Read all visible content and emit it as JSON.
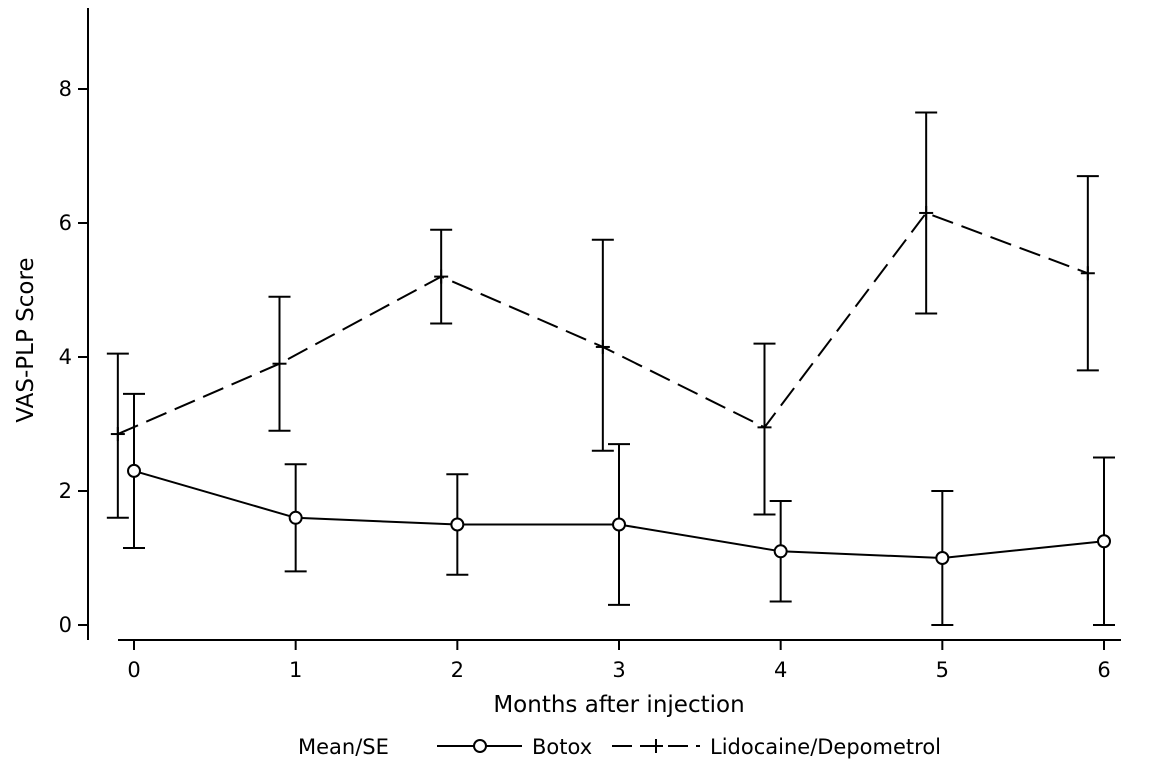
{
  "chart_data": {
    "type": "line",
    "title": "",
    "xlabel": "Months after injection",
    "ylabel": "VAS-PLP Score",
    "xlim": [
      -0.3,
      6.3
    ],
    "ylim": [
      -0.2,
      9.2
    ],
    "xticks": [
      0,
      1,
      2,
      3,
      4,
      5,
      6
    ],
    "yticks": [
      0,
      2,
      4,
      6,
      8
    ],
    "grid": false,
    "legend": {
      "position": "bottom",
      "title": "Mean/SE"
    },
    "series": [
      {
        "name": "Botox",
        "style": "solid",
        "marker": "circle",
        "x": [
          0,
          1,
          2,
          3,
          4,
          5,
          6
        ],
        "mean": [
          2.3,
          1.6,
          1.5,
          1.5,
          1.1,
          1.0,
          1.25
        ],
        "lower": [
          1.15,
          0.8,
          0.75,
          0.3,
          0.35,
          0.0,
          0.0
        ],
        "upper": [
          3.45,
          2.4,
          2.25,
          2.7,
          1.85,
          2.0,
          2.5
        ]
      },
      {
        "name": "Lidocaine/Depometrol",
        "style": "dashed",
        "marker": "plus",
        "x": [
          -0.1,
          0.9,
          1.9,
          2.9,
          3.9,
          4.9,
          5.9
        ],
        "mean": [
          2.85,
          3.9,
          5.2,
          4.15,
          2.95,
          6.15,
          5.25
        ],
        "lower": [
          1.6,
          2.9,
          4.5,
          2.6,
          1.65,
          4.65,
          3.8
        ],
        "upper": [
          4.05,
          4.9,
          5.9,
          5.75,
          4.2,
          7.65,
          6.7
        ]
      }
    ]
  }
}
